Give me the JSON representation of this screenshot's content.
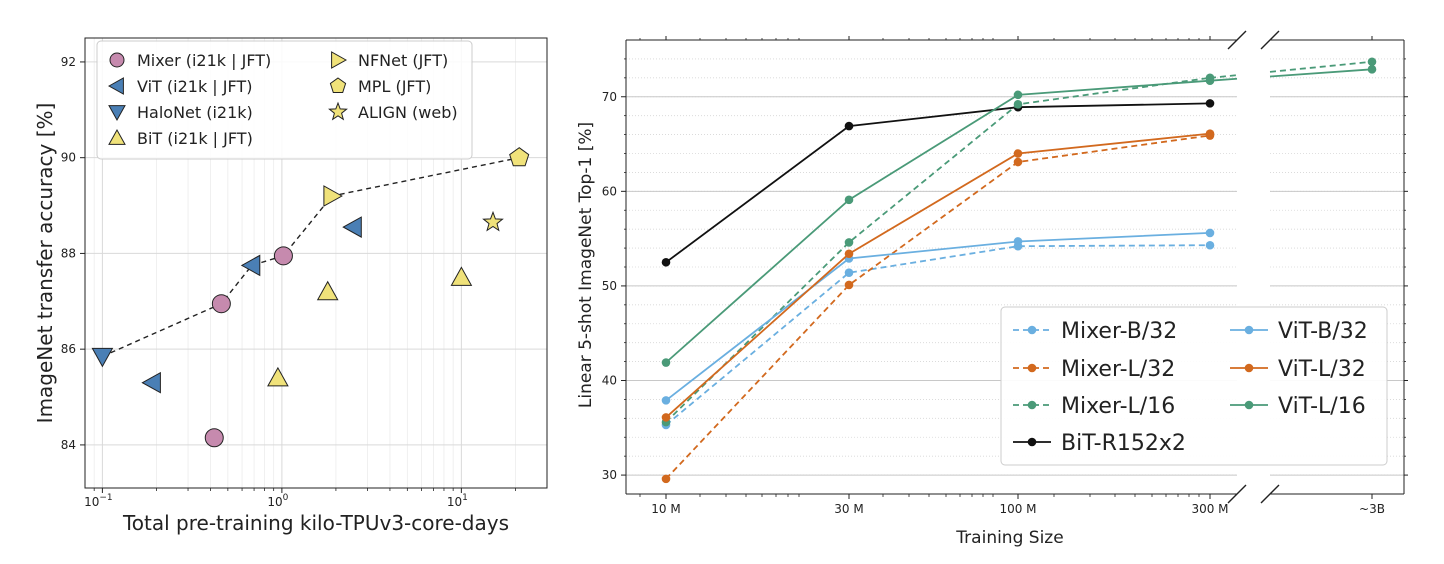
{
  "chart_data": [
    {
      "type": "scatter",
      "xlabel": "Total pre-training kilo-TPUv3-core-days",
      "ylabel": "ImageNet transfer accuracy [%]",
      "xscale": "log",
      "xlim": [
        0.08,
        30
      ],
      "ylim": [
        83.1,
        92.5
      ],
      "xticks": [
        {
          "v": 0.1,
          "base": "10",
          "exp": "−1"
        },
        {
          "v": 1,
          "base": "10",
          "exp": "0"
        },
        {
          "v": 10,
          "base": "10",
          "exp": "1"
        }
      ],
      "yticks": [
        "84",
        "86",
        "88",
        "90",
        "92"
      ],
      "grid": true,
      "legend_position": "top-left",
      "legend_columns": 2,
      "series": [
        {
          "name": "Mixer (i21k | JFT)",
          "marker": "circle",
          "color": "#c68aae",
          "points": [
            [
              0.42,
              84.15
            ],
            [
              0.46,
              86.95
            ],
            [
              1.02,
              87.95
            ]
          ]
        },
        {
          "name": "ViT (i21k | JFT)",
          "marker": "triangle-left",
          "color": "#4a7fb5",
          "points": [
            [
              0.19,
              85.3
            ],
            [
              0.68,
              87.75
            ],
            [
              2.5,
              88.55
            ]
          ]
        },
        {
          "name": "HaloNet (i21k)",
          "marker": "triangle-down",
          "color": "#4a7fb5",
          "points": [
            [
              0.1,
              85.85
            ]
          ]
        },
        {
          "name": "BiT (i21k | JFT)",
          "marker": "triangle-up",
          "color": "#f0e27a",
          "points": [
            [
              0.95,
              85.4
            ],
            [
              1.8,
              87.2
            ],
            [
              10,
              87.5
            ]
          ]
        },
        {
          "name": "NFNet (JFT)",
          "marker": "triangle-right",
          "color": "#f0e27a",
          "points": [
            [
              1.9,
              89.2
            ]
          ]
        },
        {
          "name": "MPL (JFT)",
          "marker": "pentagon",
          "color": "#f0e27a",
          "points": [
            [
              21,
              90.0
            ]
          ]
        },
        {
          "name": "ALIGN (web)",
          "marker": "star",
          "color": "#f0e27a",
          "points": [
            [
              15,
              88.65
            ]
          ]
        }
      ],
      "frontier": {
        "style": "dashed",
        "color": "#222222",
        "points": [
          [
            0.1,
            85.85
          ],
          [
            0.46,
            86.95
          ],
          [
            0.68,
            87.75
          ],
          [
            1.02,
            87.95
          ],
          [
            1.9,
            89.2
          ],
          [
            21,
            90.0
          ]
        ]
      }
    },
    {
      "type": "line",
      "xlabel": "Training Size",
      "ylabel": "Linear 5-shot ImageNet Top-1 [%]",
      "categories": [
        "10 M",
        "30 M",
        "100 M",
        "300 M",
        "~3B"
      ],
      "yticks": [
        "30",
        "40",
        "50",
        "60",
        "70"
      ],
      "ylim": [
        28,
        76
      ],
      "broken_axis": true,
      "grid": true,
      "legend_position": "bottom-right",
      "legend_columns": 2,
      "series": [
        {
          "name": "Mixer-B/32",
          "style": "dashed",
          "color": "#6aafe0",
          "values": [
            35.3,
            51.4,
            54.2,
            54.3,
            null
          ]
        },
        {
          "name": "Mixer-L/32",
          "style": "dashed",
          "color": "#d2691e",
          "values": [
            29.6,
            50.1,
            63.1,
            65.9,
            null
          ]
        },
        {
          "name": "Mixer-L/16",
          "style": "dashed",
          "color": "#4a9a78",
          "values": [
            35.6,
            54.6,
            69.2,
            72.0,
            73.7
          ]
        },
        {
          "name": "BiT-R152x2",
          "style": "solid",
          "color": "#111111",
          "values": [
            52.5,
            66.9,
            68.9,
            69.3,
            null
          ]
        },
        {
          "name": "ViT-B/32",
          "style": "solid",
          "color": "#6aafe0",
          "values": [
            37.9,
            52.9,
            54.7,
            55.6,
            null
          ]
        },
        {
          "name": "ViT-L/32",
          "style": "solid",
          "color": "#d2691e",
          "values": [
            36.1,
            53.4,
            64.0,
            66.1,
            null
          ]
        },
        {
          "name": "ViT-L/16",
          "style": "solid",
          "color": "#4a9a78",
          "values": [
            41.9,
            59.1,
            70.2,
            71.7,
            72.9
          ]
        }
      ]
    }
  ]
}
